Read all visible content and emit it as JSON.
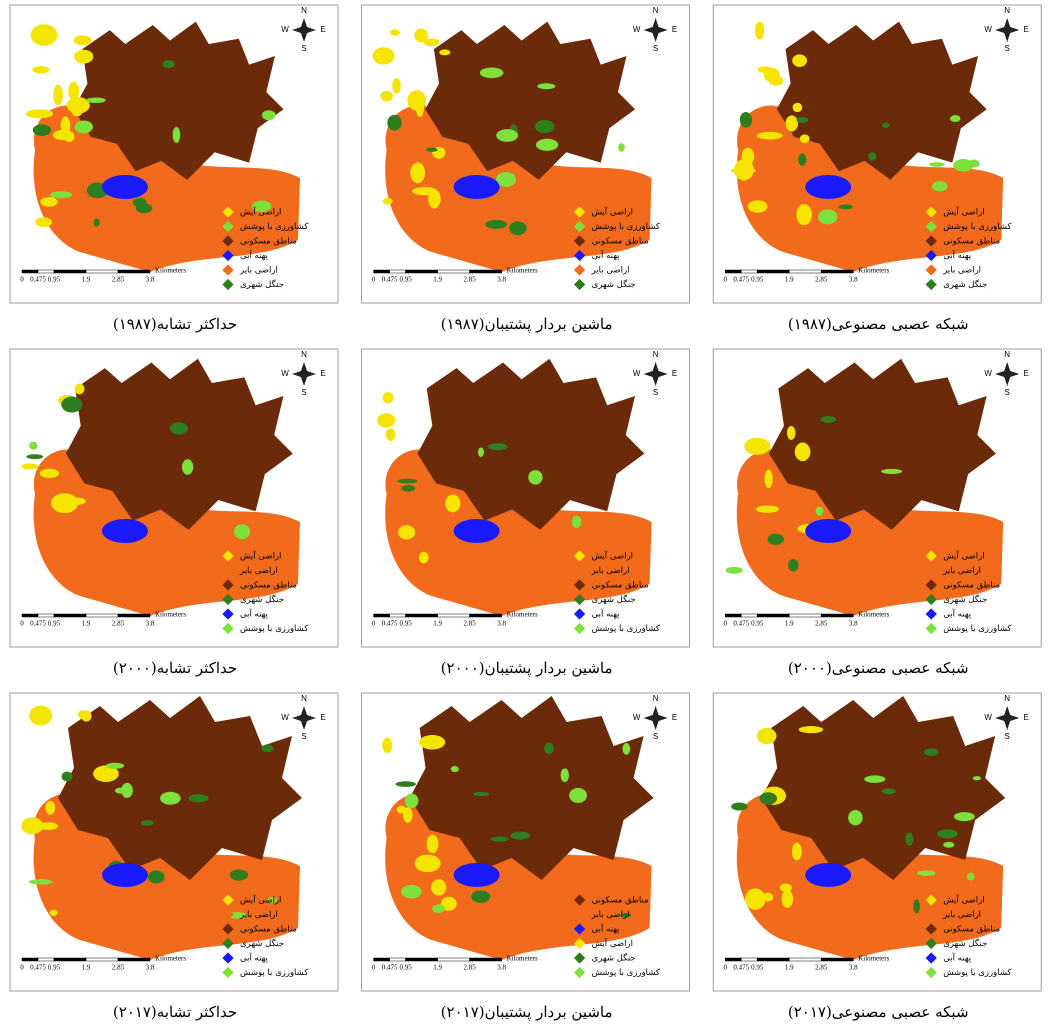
{
  "compass": {
    "n": "N",
    "s": "S",
    "e": "E",
    "w": "W"
  },
  "scale": {
    "ticks": [
      "0",
      "0.475",
      "0.95",
      "1.9",
      "2.85",
      "3.8"
    ],
    "unit": "Kilometers"
  },
  "panels": [
    {
      "caption": "حداکثر تشابه(۱۹۸۷)",
      "legend": [
        {
          "label": "اراضی آیش",
          "color": "#f5e400"
        },
        {
          "label": "کشاورزی با پوشش",
          "color": "#7ee03a"
        },
        {
          "label": "مناطق مسکونی",
          "color": "#6b2a0a"
        },
        {
          "label": "پهنه آبی",
          "color": "#1a1aff"
        },
        {
          "label": "اراضی بایر",
          "color": "#f26a1b"
        },
        {
          "label": "جنگل شهری",
          "color": "#2e7d1e"
        }
      ]
    },
    {
      "caption": "ماشین بردار پشتیبان(۱۹۸۷)",
      "legend": [
        {
          "label": "اراضی آیش",
          "color": "#f5e400"
        },
        {
          "label": "کشاورزی با پوشش",
          "color": "#7ee03a"
        },
        {
          "label": "مناطق مسکونی",
          "color": "#6b2a0a"
        },
        {
          "label": "پهنه آبی",
          "color": "#1a1aff"
        },
        {
          "label": "اراضی بایر",
          "color": "#f26a1b"
        },
        {
          "label": "جنگل شهری",
          "color": "#2e7d1e"
        }
      ]
    },
    {
      "caption": "شبکه عصبی مصنوعی(۱۹۸۷)",
      "legend": [
        {
          "label": "اراضی آیش",
          "color": "#f5e400"
        },
        {
          "label": "کشاورزی با پوشش",
          "color": "#7ee03a"
        },
        {
          "label": "مناطق مسکونی",
          "color": "#6b2a0a"
        },
        {
          "label": "پهنه آبی",
          "color": "#1a1aff"
        },
        {
          "label": "اراضی بایر",
          "color": "#f26a1b"
        },
        {
          "label": "جنگل شهری",
          "color": "#2e7d1e"
        }
      ]
    },
    {
      "caption": "حداکثر تشابه(۲۰۰۰)",
      "legend": [
        {
          "label": "اراضی آیش",
          "color": "#f5e400"
        },
        {
          "label": "اراضی بایر",
          "color": "#f26a1b"
        },
        {
          "label": "مناطق مسکونی",
          "color": "#6b2a0a"
        },
        {
          "label": "جنگل شهری",
          "color": "#2e7d1e"
        },
        {
          "label": "پهنه آبی",
          "color": "#1a1aff"
        },
        {
          "label": "کشاورزی با پوشش",
          "color": "#7ee03a"
        }
      ]
    },
    {
      "caption": "ماشین بردار پشتیبان(۲۰۰۰)",
      "legend": [
        {
          "label": "اراضی آیش",
          "color": "#f5e400"
        },
        {
          "label": "اراضی بایر",
          "color": "#f26a1b"
        },
        {
          "label": "مناطق مسکونی",
          "color": "#6b2a0a"
        },
        {
          "label": "جنگل شهری",
          "color": "#2e7d1e"
        },
        {
          "label": "پهنه آبی",
          "color": "#1a1aff"
        },
        {
          "label": "کشاورزی با پوشش",
          "color": "#7ee03a"
        }
      ]
    },
    {
      "caption": "شبکه عصبی مصنوعی(۲۰۰۰)",
      "legend": [
        {
          "label": "اراضی آیش",
          "color": "#f5e400"
        },
        {
          "label": "اراضی بایر",
          "color": "#f26a1b"
        },
        {
          "label": "مناطق مسکونی",
          "color": "#6b2a0a"
        },
        {
          "label": "جنگل شهری",
          "color": "#2e7d1e"
        },
        {
          "label": "پهنه آبی",
          "color": "#1a1aff"
        },
        {
          "label": "کشاورزی با پوشش",
          "color": "#7ee03a"
        }
      ]
    },
    {
      "caption": "حداکثر تشابه(۲۰۱۷)",
      "legend": [
        {
          "label": "اراضی آیش",
          "color": "#f5e400"
        },
        {
          "label": "اراضی بایر",
          "color": "#f26a1b"
        },
        {
          "label": "مناطق مسکونی",
          "color": "#6b2a0a"
        },
        {
          "label": "جنگل شهری",
          "color": "#2e7d1e"
        },
        {
          "label": "پهنه آبی",
          "color": "#1a1aff"
        },
        {
          "label": "کشاورزی با پوشش",
          "color": "#7ee03a"
        }
      ]
    },
    {
      "caption": "ماشین بردار پشتیبان(۲۰۱۷)",
      "legend": [
        {
          "label": "مناطق مسکونی",
          "color": "#6b2a0a"
        },
        {
          "label": "اراضی بایر",
          "color": "#f26a1b"
        },
        {
          "label": "پهنه آبی",
          "color": "#1a1aff"
        },
        {
          "label": "اراضی آیش",
          "color": "#f5e400"
        },
        {
          "label": "جنگل شهری",
          "color": "#2e7d1e"
        },
        {
          "label": "کشاورزی با پوشش",
          "color": "#7ee03a"
        }
      ]
    },
    {
      "caption": "شبکه عصبی مصنوعی(۲۰۱۷)",
      "legend": [
        {
          "label": "اراضی آیش",
          "color": "#f5e400"
        },
        {
          "label": "اراضی بایر",
          "color": "#f26a1b"
        },
        {
          "label": "مناطق مسکونی",
          "color": "#6b2a0a"
        },
        {
          "label": "جنگل شهری",
          "color": "#2e7d1e"
        },
        {
          "label": "پهنه آبی",
          "color": "#1a1aff"
        },
        {
          "label": "کشاورزی با پوشش",
          "color": "#7ee03a"
        }
      ]
    }
  ]
}
